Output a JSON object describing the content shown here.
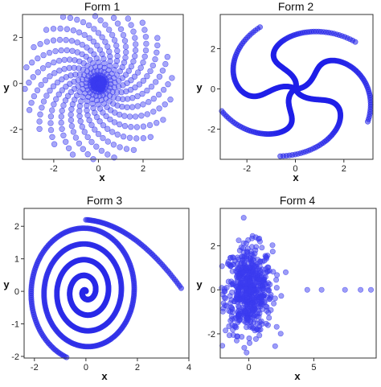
{
  "chart_data": [
    {
      "type": "scatter",
      "title": "Form 1",
      "xlabel": "x",
      "ylabel": "y",
      "xlim": [
        -3.4,
        3.8
      ],
      "ylim": [
        -3.3,
        3.0
      ],
      "xticks": [
        -2,
        0,
        2
      ],
      "yticks": [
        -2,
        0,
        2
      ],
      "color": "#3b3bf0",
      "pattern": "spiral-galaxy: dense center, many arms, points to radius ~3.3",
      "arms": 22,
      "points_per_arm": 18,
      "max_radius": 3.3,
      "twist_radians": 1.5,
      "sample_points": [
        [
          -3.2,
          -0.1
        ],
        [
          3.5,
          0.3
        ],
        [
          0.2,
          2.8
        ],
        [
          -0.2,
          -3.0
        ],
        [
          -2.6,
          1.6
        ],
        [
          2.7,
          -1.7
        ]
      ]
    },
    {
      "type": "scatter",
      "title": "Form 2",
      "xlabel": "x",
      "ylabel": "y",
      "xlim": [
        -3.1,
        3.2
      ],
      "ylim": [
        -3.5,
        3.7
      ],
      "xticks": [
        -2,
        0,
        2
      ],
      "yticks": [
        -2,
        0,
        2
      ],
      "color": "#2020e8",
      "pattern": "5-arm pinwheel of dense curved arms",
      "arms": 5,
      "points_per_arm": 120,
      "max_radius": 3.4,
      "twist_radians": 1.2,
      "sample_points": [
        [
          1.1,
          3.5
        ],
        [
          -2.8,
          2.0
        ],
        [
          -2.8,
          -2.0
        ],
        [
          1.1,
          -3.2
        ],
        [
          3.2,
          0.0
        ]
      ]
    },
    {
      "type": "scatter",
      "title": "Form 3",
      "xlabel": "x",
      "ylabel": "y",
      "xlim": [
        -2.4,
        4.0
      ],
      "ylim": [
        -2.05,
        2.55
      ],
      "xticks": [
        -2,
        0,
        2,
        4
      ],
      "yticks": [
        -2,
        -1,
        0,
        1,
        2
      ],
      "color": "#2a2ae8",
      "pattern": "Archimedean spiral with tail extending to (3.7, 0.1)",
      "spiral_turns": 4.5,
      "spiral_max_radius": 2.25,
      "tail_end": [
        3.7,
        0.1
      ]
    },
    {
      "type": "scatter",
      "title": "Form 4",
      "xlabel": "x",
      "ylabel": "y",
      "xlim": [
        -2.2,
        9.8
      ],
      "ylim": [
        -3.1,
        3.7
      ],
      "xticks": [
        0,
        5
      ],
      "yticks": [
        -2,
        0,
        2
      ],
      "color": "#3b3bf0",
      "pattern": "gaussian blob centered at (0,0) with sd x~0.9, y~1.0, plus outliers on y=0",
      "blob_center": [
        0,
        0
      ],
      "blob_sd": [
        0.9,
        1.0
      ],
      "blob_points": 600,
      "outliers": [
        [
          4.5,
          0.0
        ],
        [
          5.6,
          0.0
        ],
        [
          7.4,
          0.0
        ],
        [
          8.6,
          0.0
        ],
        [
          9.4,
          0.0
        ]
      ]
    }
  ]
}
